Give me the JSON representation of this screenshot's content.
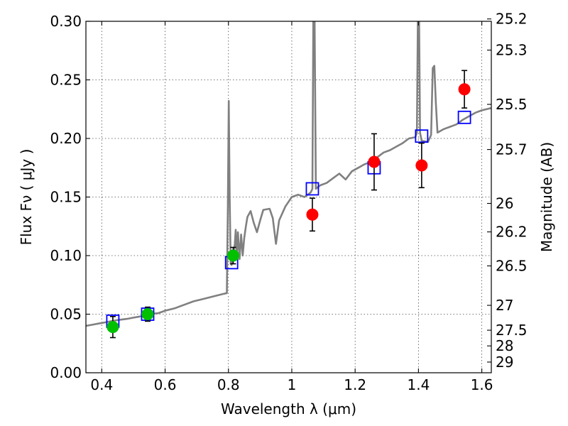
{
  "chart_data": {
    "type": "scatter",
    "xlabel": "Wavelength  λ (μm)",
    "ylabel": "Flux  Fν  ( μJy )",
    "ylabel_right": "Magnitude (AB)",
    "xlim": [
      0.35,
      1.63
    ],
    "ylim": [
      0.0,
      0.3
    ],
    "grid": true,
    "x_ticks": [
      {
        "value": 0.4,
        "label": "0.4"
      },
      {
        "value": 0.6,
        "label": "0.6"
      },
      {
        "value": 0.8,
        "label": "0.8"
      },
      {
        "value": 1.0,
        "label": "1"
      },
      {
        "value": 1.2,
        "label": "1.2"
      },
      {
        "value": 1.4,
        "label": "1.4"
      },
      {
        "value": 1.6,
        "label": "1.6"
      }
    ],
    "y_ticks": [
      {
        "value": 0.0,
        "label": "0.00"
      },
      {
        "value": 0.05,
        "label": "0.05"
      },
      {
        "value": 0.1,
        "label": "0.10"
      },
      {
        "value": 0.15,
        "label": "0.15"
      },
      {
        "value": 0.2,
        "label": "0.20"
      },
      {
        "value": 0.25,
        "label": "0.25"
      },
      {
        "value": 0.3,
        "label": "0.30"
      }
    ],
    "mag_ticks": [
      {
        "mag": 25.2,
        "label": "25.2"
      },
      {
        "mag": 25.3,
        "label": "25.3"
      },
      {
        "mag": 25.5,
        "label": "25.5"
      },
      {
        "mag": 25.7,
        "label": "25.7"
      },
      {
        "mag": 26.0,
        "label": "26"
      },
      {
        "mag": 26.2,
        "label": "26.2"
      },
      {
        "mag": 26.5,
        "label": "26.5"
      },
      {
        "mag": 27.0,
        "label": "27"
      },
      {
        "mag": 27.5,
        "label": "27.5"
      },
      {
        "mag": 28.0,
        "label": "28"
      },
      {
        "mag": 29.0,
        "label": "29"
      }
    ],
    "series": [
      {
        "name": "model spectrum",
        "kind": "line",
        "color": "#808080",
        "points": [
          [
            0.35,
            0.04
          ],
          [
            0.37,
            0.041
          ],
          [
            0.39,
            0.042
          ],
          [
            0.41,
            0.043
          ],
          [
            0.43,
            0.044
          ],
          [
            0.45,
            0.045
          ],
          [
            0.48,
            0.046
          ],
          [
            0.5,
            0.047
          ],
          [
            0.52,
            0.048
          ],
          [
            0.55,
            0.05
          ],
          [
            0.58,
            0.051
          ],
          [
            0.6,
            0.053
          ],
          [
            0.63,
            0.055
          ],
          [
            0.66,
            0.058
          ],
          [
            0.69,
            0.061
          ],
          [
            0.72,
            0.063
          ],
          [
            0.75,
            0.065
          ],
          [
            0.78,
            0.067
          ],
          [
            0.795,
            0.068
          ],
          [
            0.798,
            0.14
          ],
          [
            0.801,
            0.232
          ],
          [
            0.804,
            0.15
          ],
          [
            0.807,
            0.093
          ],
          [
            0.81,
            0.092
          ],
          [
            0.815,
            0.1
          ],
          [
            0.82,
            0.11
          ],
          [
            0.823,
            0.122
          ],
          [
            0.826,
            0.098
          ],
          [
            0.83,
            0.12
          ],
          [
            0.835,
            0.097
          ],
          [
            0.84,
            0.118
          ],
          [
            0.845,
            0.1
          ],
          [
            0.85,
            0.115
          ],
          [
            0.855,
            0.125
          ],
          [
            0.86,
            0.133
          ],
          [
            0.87,
            0.138
          ],
          [
            0.88,
            0.128
          ],
          [
            0.89,
            0.12
          ],
          [
            0.9,
            0.13
          ],
          [
            0.91,
            0.139
          ],
          [
            0.93,
            0.14
          ],
          [
            0.94,
            0.132
          ],
          [
            0.95,
            0.11
          ],
          [
            0.96,
            0.13
          ],
          [
            0.98,
            0.142
          ],
          [
            1.0,
            0.15
          ],
          [
            1.02,
            0.152
          ],
          [
            1.04,
            0.15
          ],
          [
            1.06,
            0.154
          ],
          [
            1.065,
            0.157
          ],
          [
            1.068,
            0.3
          ],
          [
            1.072,
            0.3
          ],
          [
            1.076,
            0.157
          ],
          [
            1.09,
            0.16
          ],
          [
            1.11,
            0.162
          ],
          [
            1.13,
            0.166
          ],
          [
            1.15,
            0.17
          ],
          [
            1.17,
            0.165
          ],
          [
            1.19,
            0.172
          ],
          [
            1.21,
            0.175
          ],
          [
            1.23,
            0.178
          ],
          [
            1.25,
            0.18
          ],
          [
            1.27,
            0.184
          ],
          [
            1.29,
            0.188
          ],
          [
            1.31,
            0.19
          ],
          [
            1.33,
            0.193
          ],
          [
            1.35,
            0.196
          ],
          [
            1.37,
            0.2
          ],
          [
            1.39,
            0.201
          ],
          [
            1.395,
            0.205
          ],
          [
            1.398,
            0.3
          ],
          [
            1.402,
            0.3
          ],
          [
            1.405,
            0.205
          ],
          [
            1.41,
            0.198
          ],
          [
            1.43,
            0.197
          ],
          [
            1.44,
            0.203
          ],
          [
            1.445,
            0.26
          ],
          [
            1.45,
            0.262
          ],
          [
            1.455,
            0.23
          ],
          [
            1.46,
            0.205
          ],
          [
            1.48,
            0.208
          ],
          [
            1.5,
            0.21
          ],
          [
            1.52,
            0.212
          ],
          [
            1.54,
            0.216
          ],
          [
            1.56,
            0.219
          ],
          [
            1.58,
            0.222
          ],
          [
            1.6,
            0.224
          ],
          [
            1.63,
            0.226
          ]
        ]
      },
      {
        "name": "model photometry",
        "kind": "square",
        "color": "#0000ff",
        "points": [
          [
            0.435,
            0.044
          ],
          [
            0.545,
            0.05
          ],
          [
            0.81,
            0.094
          ],
          [
            1.065,
            0.157
          ],
          [
            1.26,
            0.175
          ],
          [
            1.41,
            0.202
          ],
          [
            1.545,
            0.218
          ]
        ]
      },
      {
        "name": "observed (green)",
        "kind": "circle",
        "color": "#00c000",
        "points": [
          {
            "x": 0.435,
            "y": 0.039,
            "err": 0.009
          },
          {
            "x": 0.545,
            "y": 0.05,
            "err": 0.006
          },
          {
            "x": 0.815,
            "y": 0.1,
            "err": 0.007
          }
        ]
      },
      {
        "name": "observed (red)",
        "kind": "circle",
        "color": "#ff0000",
        "points": [
          {
            "x": 1.065,
            "y": 0.135,
            "err": 0.014
          },
          {
            "x": 1.26,
            "y": 0.18,
            "err": 0.024
          },
          {
            "x": 1.41,
            "y": 0.177,
            "err": 0.019
          },
          {
            "x": 1.545,
            "y": 0.242,
            "err": 0.016
          }
        ]
      }
    ]
  }
}
